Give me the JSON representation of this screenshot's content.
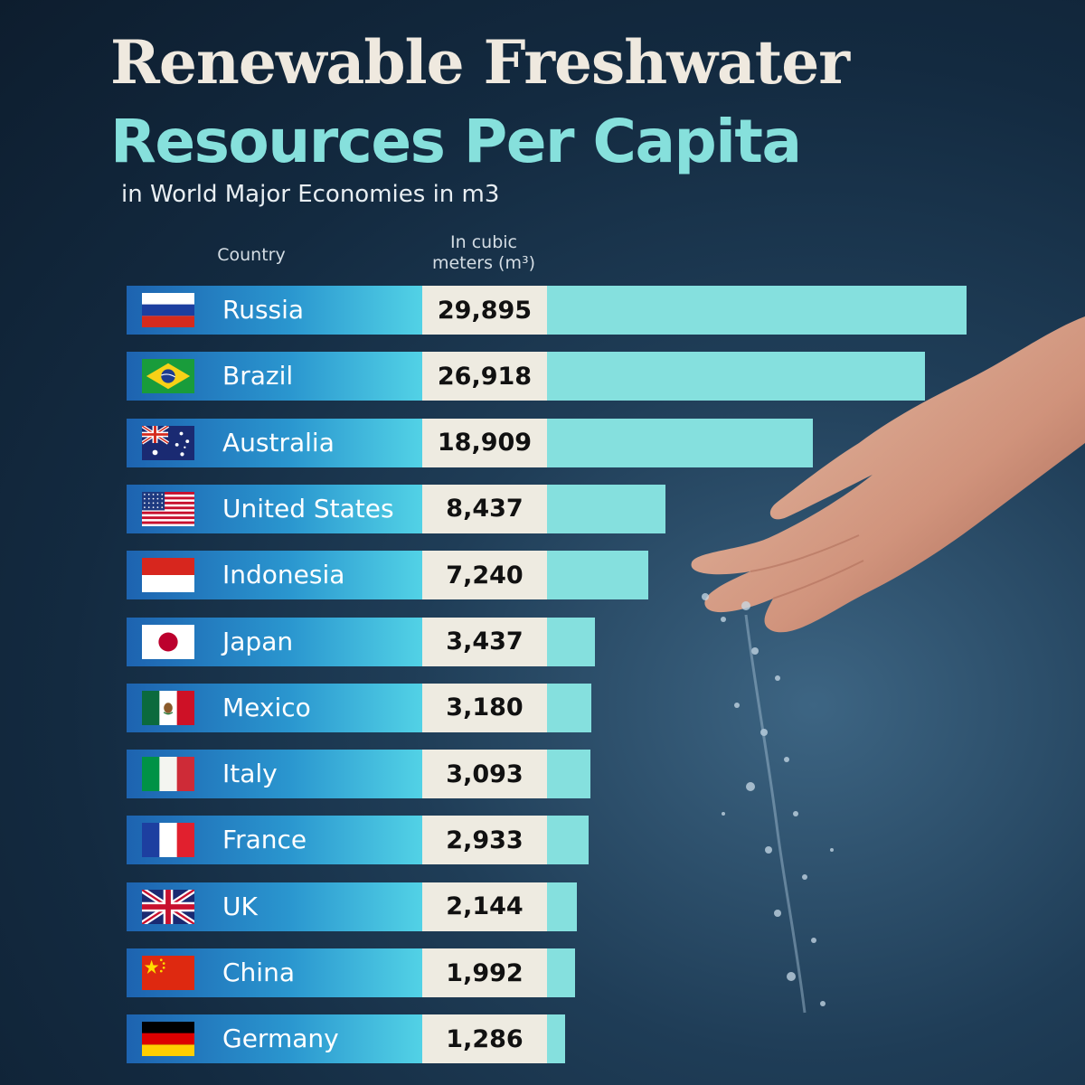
{
  "title_line1": "Renewable Freshwater",
  "title_line2": "Resources Per Capita",
  "subtitle": "in World Major Economies in m3",
  "column_headers": {
    "country": "Country",
    "unit_line1": "In cubic",
    "unit_line2": "meters (m³)"
  },
  "colors": {
    "title_primary": "#efe9df",
    "title_accent": "#86e0dc",
    "bar_fill": "#85e0de",
    "value_box": "#eeebe1",
    "name_gradient_start": "#1d63b0",
    "name_gradient_end": "#52d2e6",
    "background": "#132a40"
  },
  "chart_data": {
    "type": "bar",
    "orientation": "horizontal",
    "title": "Renewable Freshwater Resources Per Capita",
    "subtitle": "in World Major Economies in m3",
    "categories": [
      "Russia",
      "Brazil",
      "Australia",
      "United States",
      "Indonesia",
      "Japan",
      "Mexico",
      "Italy",
      "France",
      "UK",
      "China",
      "Germany"
    ],
    "values": [
      29895,
      26918,
      18909,
      8437,
      7240,
      3437,
      3180,
      3093,
      2933,
      2144,
      1992,
      1286
    ],
    "value_labels": [
      "29,895",
      "26,918",
      "18,909",
      "8,437",
      "7,240",
      "3,437",
      "3,180",
      "3,093",
      "2,933",
      "2,144",
      "1,992",
      "1,286"
    ],
    "flag_icons": [
      "russia-flag-icon",
      "brazil-flag-icon",
      "australia-flag-icon",
      "united-states-flag-icon",
      "indonesia-flag-icon",
      "japan-flag-icon",
      "mexico-flag-icon",
      "italy-flag-icon",
      "france-flag-icon",
      "uk-flag-icon",
      "china-flag-icon",
      "germany-flag-icon"
    ],
    "grid": false,
    "legend": "none"
  }
}
